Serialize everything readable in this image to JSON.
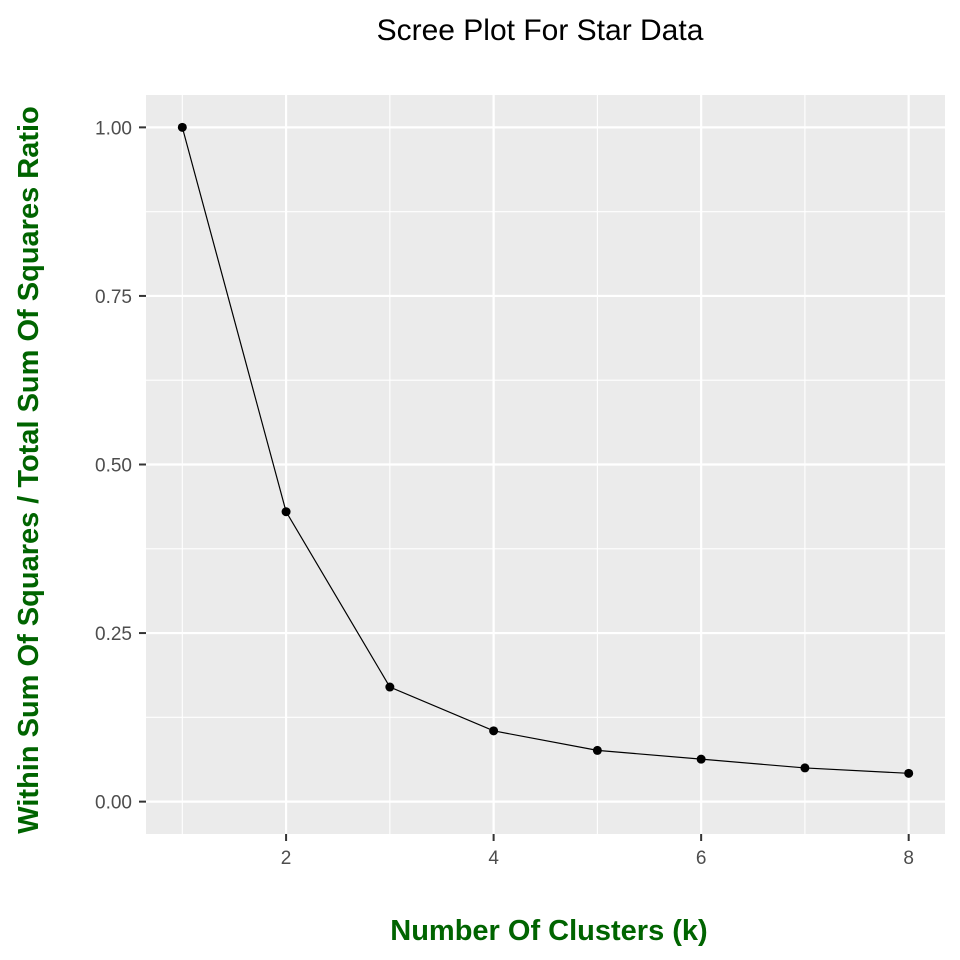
{
  "chart_data": {
    "type": "line",
    "title": "Scree Plot For Star Data",
    "xlabel": "Number Of Clusters (k)",
    "ylabel": "Within Sum Of Squares / Total Sum Of Squares Ratio",
    "x": [
      1,
      2,
      3,
      4,
      5,
      6,
      7,
      8
    ],
    "series": [
      {
        "values": [
          1.0,
          0.43,
          0.17,
          0.105,
          0.076,
          0.063,
          0.05,
          0.042
        ]
      }
    ],
    "xlim": [
      0.65,
      8.35
    ],
    "ylim": [
      -0.048,
      1.048
    ],
    "x_ticks": [
      2,
      4,
      6,
      8
    ],
    "x_tick_labels": [
      "2",
      "4",
      "6",
      "8"
    ],
    "y_ticks": [
      0,
      0.25,
      0.5,
      0.75,
      1.0
    ],
    "y_tick_labels": [
      "0.00",
      "0.25",
      "0.50",
      "0.75",
      "1.00"
    ],
    "grid": true,
    "colors": {
      "panel_background": "#ebebeb",
      "grid_line": "#ffffff",
      "series_line": "#000000",
      "axis_title": "#006400",
      "tick_label": "#4d4d4d"
    }
  }
}
